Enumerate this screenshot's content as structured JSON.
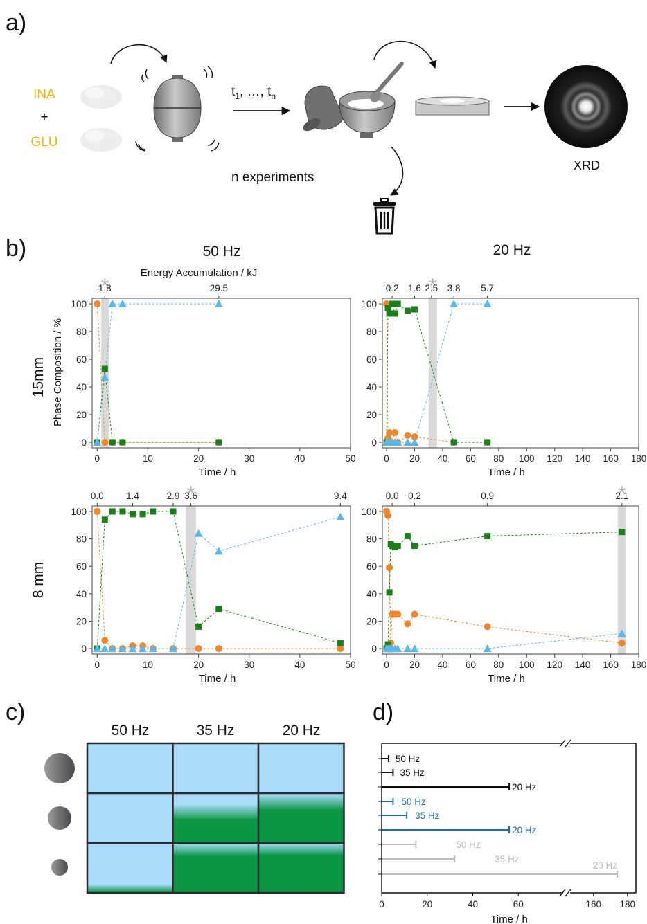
{
  "panel_labels": {
    "a": "a)",
    "b": "b)",
    "c": "c)",
    "d": "d)"
  },
  "panel_a": {
    "reagent_top": "INA",
    "plus": "+",
    "reagent_bottom": "GLU",
    "time_label": "t1,  …, tn",
    "time_t": "t",
    "time_sub1": "1",
    "time_sep": ",  …, ",
    "time_subn": "n",
    "experiments_label": "n experiments",
    "xrd_label": "XRD",
    "colors": {
      "reagent": "#f2b800",
      "jar": "#8a8a8a"
    }
  },
  "panel_b": {
    "column_titles": [
      "50 Hz",
      "20 Hz"
    ],
    "row_titles": [
      "15mm",
      "8 mm"
    ],
    "top_axis_title": "Energy Accumulation /  kJ",
    "y_axis_title": "Phase Composition / %",
    "x_axis_title": "Time / h",
    "star": "*",
    "series_colors": {
      "orange": "#f0862c",
      "green": "#1a7f1a",
      "blue": "#5bb6ea",
      "shade": "#d9d9d9"
    }
  },
  "panel_c": {
    "columns": [
      "50 Hz",
      "35 Hz",
      "20 Hz"
    ],
    "colors": {
      "blue": "#aadcfa",
      "green": "#0a9645",
      "grid": "#2b2b2b"
    },
    "green_fraction": [
      [
        0,
        0,
        0
      ],
      [
        0,
        0.7,
        0.9
      ],
      [
        0.1,
        0.98,
        1.0
      ]
    ]
  },
  "panel_d": {
    "x_axis_title": "Time / h",
    "tick_labels": [
      "0",
      "20",
      "40",
      "60",
      "160",
      "180"
    ],
    "series_colors": [
      "#111111",
      "#1a6ea0",
      "#bbbbbb"
    ]
  },
  "chart_data": [
    {
      "id": "b-15mm-50Hz",
      "type": "scatter",
      "xlabel": "Time / h",
      "ylabel": "Phase Composition / %",
      "xlim": [
        -1,
        50
      ],
      "ylim": [
        -4,
        104
      ],
      "xticks": [
        0,
        10,
        20,
        30,
        40,
        50
      ],
      "yticks": [
        0,
        20,
        40,
        60,
        80,
        100
      ],
      "top_axis": {
        "title": "Energy Accumulation /  kJ",
        "labels": [
          {
            "x": 1.5,
            "label": "1.8"
          },
          {
            "x": 24,
            "label": "29.5"
          }
        ]
      },
      "shaded_x": [
        0.8,
        2.3
      ],
      "star_x": 1.5,
      "series": [
        {
          "marker": "circle",
          "color": "#f0862c",
          "x": [
            0,
            1.5,
            3,
            5,
            24
          ],
          "y": [
            100,
            0,
            0,
            0,
            0
          ]
        },
        {
          "marker": "square",
          "color": "#1a7f1a",
          "x": [
            0,
            1.5,
            3,
            5,
            24
          ],
          "y": [
            0,
            53,
            0,
            0,
            0
          ]
        },
        {
          "marker": "triangle",
          "color": "#5bb6ea",
          "x": [
            0,
            1.5,
            3,
            5,
            24
          ],
          "y": [
            0,
            47,
            100,
            100,
            100
          ]
        }
      ]
    },
    {
      "id": "b-15mm-20Hz",
      "type": "scatter",
      "xlabel": "Time / h",
      "ylabel": "",
      "xlim": [
        -3,
        180
      ],
      "ylim": [
        -4,
        104
      ],
      "xticks": [
        0,
        20,
        40,
        60,
        80,
        100,
        120,
        140,
        160,
        180
      ],
      "yticks": [
        0,
        20,
        40,
        60,
        80,
        100
      ],
      "top_axis": {
        "title": "",
        "labels": [
          {
            "x": 4,
            "label": "0.2"
          },
          {
            "x": 20,
            "label": "1.6"
          },
          {
            "x": 32,
            "label": "2.5"
          },
          {
            "x": 48,
            "label": "3.8"
          },
          {
            "x": 72,
            "label": "5.7"
          }
        ]
      },
      "shaded_x": [
        30,
        36
      ],
      "star_x": 33,
      "series": [
        {
          "marker": "circle",
          "color": "#f0862c",
          "x": [
            0,
            1,
            2,
            4,
            6,
            8,
            15,
            20,
            48,
            72
          ],
          "y": [
            100,
            3,
            7,
            0,
            7,
            0,
            5,
            4,
            0,
            0
          ]
        },
        {
          "marker": "square",
          "color": "#1a7f1a",
          "x": [
            0,
            1,
            2,
            4,
            6,
            8,
            15,
            20,
            48,
            72
          ],
          "y": [
            0,
            97,
            93,
            100,
            93,
            100,
            95,
            96,
            0,
            0
          ]
        },
        {
          "marker": "triangle",
          "color": "#5bb6ea",
          "x": [
            0,
            1,
            2,
            4,
            6,
            8,
            15,
            20,
            48,
            72
          ],
          "y": [
            0,
            0,
            0,
            0,
            0,
            0,
            0,
            0,
            100,
            100
          ]
        }
      ]
    },
    {
      "id": "b-8mm-50Hz",
      "type": "scatter",
      "xlabel": "Time / h",
      "ylabel": "",
      "xlim": [
        -1,
        50
      ],
      "ylim": [
        -4,
        104
      ],
      "xticks": [
        0,
        10,
        20,
        30,
        40,
        50
      ],
      "yticks": [
        0,
        20,
        40,
        60,
        80,
        100
      ],
      "top_axis": {
        "title": "",
        "labels": [
          {
            "x": 0,
            "label": "0.0"
          },
          {
            "x": 7,
            "label": "1.4"
          },
          {
            "x": 15,
            "label": "2.9"
          },
          {
            "x": 18.5,
            "label": "3.6"
          },
          {
            "x": 48,
            "label": "9.4"
          }
        ]
      },
      "shaded_x": [
        17.5,
        19.5
      ],
      "star_x": 18.5,
      "series": [
        {
          "marker": "circle",
          "color": "#f0862c",
          "x": [
            0,
            1.5,
            3,
            5,
            7,
            9,
            11,
            15,
            20,
            24,
            48
          ],
          "y": [
            100,
            6,
            0,
            0,
            2,
            2,
            0,
            0,
            0,
            0,
            0
          ]
        },
        {
          "marker": "square",
          "color": "#1a7f1a",
          "x": [
            0,
            1.5,
            3,
            5,
            7,
            9,
            11,
            15,
            20,
            24,
            48
          ],
          "y": [
            0,
            94,
            100,
            100,
            98,
            98,
            100,
            100,
            16,
            29,
            4
          ]
        },
        {
          "marker": "triangle",
          "color": "#5bb6ea",
          "x": [
            0,
            1.5,
            3,
            5,
            7,
            9,
            11,
            15,
            20,
            24,
            48
          ],
          "y": [
            0,
            0,
            0,
            0,
            0,
            0,
            0,
            0,
            84,
            71,
            96
          ]
        }
      ]
    },
    {
      "id": "b-8mm-20Hz",
      "type": "scatter",
      "xlabel": "Time / h",
      "ylabel": "",
      "xlim": [
        -3,
        180
      ],
      "ylim": [
        -4,
        104
      ],
      "xticks": [
        0,
        20,
        40,
        60,
        80,
        100,
        120,
        140,
        160,
        180
      ],
      "yticks": [
        0,
        20,
        40,
        60,
        80,
        100
      ],
      "top_axis": {
        "title": "",
        "labels": [
          {
            "x": 4,
            "label": "0.0"
          },
          {
            "x": 20,
            "label": "0.2"
          },
          {
            "x": 72,
            "label": "0.9"
          },
          {
            "x": 168,
            "label": "2.1"
          }
        ]
      },
      "shaded_x": [
        165,
        171
      ],
      "star_x": 168,
      "series": [
        {
          "marker": "circle",
          "color": "#f0862c",
          "x": [
            0,
            1,
            2,
            3,
            4,
            6,
            8,
            15,
            20,
            72,
            168
          ],
          "y": [
            100,
            97,
            59,
            4,
            25,
            25,
            25,
            18,
            25,
            16,
            4
          ]
        },
        {
          "marker": "square",
          "color": "#1a7f1a",
          "x": [
            0,
            1,
            2,
            3,
            4,
            6,
            8,
            15,
            20,
            72,
            168
          ],
          "y": [
            0,
            3,
            41,
            76,
            75,
            74,
            75,
            82,
            75,
            82,
            85
          ]
        },
        {
          "marker": "triangle",
          "color": "#5bb6ea",
          "x": [
            0,
            1,
            2,
            3,
            4,
            6,
            8,
            15,
            20,
            72,
            168
          ],
          "y": [
            0,
            0,
            0,
            0,
            0,
            0,
            0,
            0,
            0,
            0,
            11
          ]
        }
      ]
    },
    {
      "id": "d-time-bars",
      "type": "bar",
      "xlabel": "Time / h",
      "xticks": [
        0,
        20,
        40,
        60,
        160,
        180
      ],
      "series": [
        {
          "name": "50 Hz",
          "group": 0,
          "value": 3
        },
        {
          "name": "35 Hz",
          "group": 0,
          "value": 5
        },
        {
          "name": "20 Hz",
          "group": 0,
          "value": 56
        },
        {
          "name": "50 Hz",
          "group": 1,
          "value": 5
        },
        {
          "name": "35 Hz",
          "group": 1,
          "value": 11
        },
        {
          "name": "20 Hz",
          "group": 1,
          "value": 56
        },
        {
          "name": "50 Hz",
          "group": 2,
          "value": 15
        },
        {
          "name": "35 Hz",
          "group": 2,
          "value": 32
        },
        {
          "name": "20 Hz",
          "group": 2,
          "value": 174
        }
      ]
    }
  ]
}
